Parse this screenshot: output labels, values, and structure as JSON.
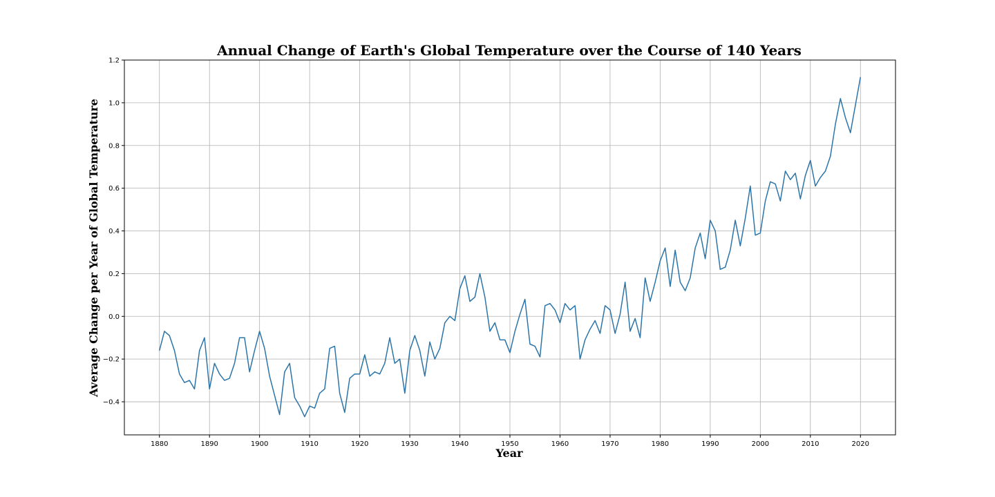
{
  "chart_data": {
    "type": "line",
    "title": "Annual Change of Earth's Global Temperature over the Course of 140 Years",
    "xlabel": "Year",
    "ylabel": "Average Change per Year of Global Temperature",
    "xlim": [
      1873,
      2027
    ],
    "ylim": [
      -0.555,
      1.2
    ],
    "xticks": [
      1880,
      1890,
      1900,
      1910,
      1920,
      1930,
      1940,
      1950,
      1960,
      1970,
      1980,
      1990,
      2000,
      2010,
      2020
    ],
    "xtick_labels": [
      "1880",
      "1890",
      "1900",
      "1910",
      "1920",
      "1930",
      "1940",
      "1950",
      "1960",
      "1970",
      "1980",
      "1990",
      "2000",
      "2010",
      "2020"
    ],
    "yticks": [
      -0.4,
      -0.2,
      0.0,
      0.2,
      0.4,
      0.6,
      0.8,
      1.0,
      1.2
    ],
    "ytick_labels": [
      "−0.4",
      "−0.2",
      "0.0",
      "0.2",
      "0.4",
      "0.6",
      "0.8",
      "1.0",
      "1.2"
    ],
    "grid": true,
    "line_color": "#2b74a8",
    "series": [
      {
        "x": [
          1880,
          1881,
          1882,
          1883,
          1884,
          1885,
          1886,
          1887,
          1888,
          1889,
          1890,
          1891,
          1892,
          1893,
          1894,
          1895,
          1896,
          1897,
          1898,
          1899,
          1900,
          1901,
          1902,
          1903,
          1904,
          1905,
          1906,
          1907,
          1908,
          1909,
          1910,
          1911,
          1912,
          1913,
          1914,
          1915,
          1916,
          1917,
          1918,
          1919,
          1920,
          1921,
          1922,
          1923,
          1924,
          1925,
          1926,
          1927,
          1928,
          1929,
          1930,
          1931,
          1932,
          1933,
          1934,
          1935,
          1936,
          1937,
          1938,
          1939,
          1940,
          1941,
          1942,
          1943,
          1944,
          1945,
          1946,
          1947,
          1948,
          1949,
          1950,
          1951,
          1952,
          1953,
          1954,
          1955,
          1956,
          1957,
          1958,
          1959,
          1960,
          1961,
          1962,
          1963,
          1964,
          1965,
          1966,
          1967,
          1968,
          1969,
          1970,
          1971,
          1972,
          1973,
          1974,
          1975,
          1976,
          1977,
          1978,
          1979,
          1980,
          1981,
          1982,
          1983,
          1984,
          1985,
          1986,
          1987,
          1988,
          1989,
          1990,
          1991,
          1992,
          1993,
          1994,
          1995,
          1996,
          1997,
          1998,
          1999,
          2000,
          2001,
          2002,
          2003,
          2004,
          2005,
          2006,
          2007,
          2008,
          2009,
          2010,
          2011,
          2012,
          2013,
          2014,
          2015,
          2016,
          2017,
          2018,
          2019,
          2020
        ],
        "values": [
          -0.16,
          -0.07,
          -0.09,
          -0.16,
          -0.27,
          -0.31,
          -0.3,
          -0.34,
          -0.16,
          -0.1,
          -0.34,
          -0.22,
          -0.27,
          -0.3,
          -0.29,
          -0.22,
          -0.1,
          -0.1,
          -0.26,
          -0.16,
          -0.07,
          -0.15,
          -0.28,
          -0.37,
          -0.46,
          -0.26,
          -0.22,
          -0.38,
          -0.42,
          -0.47,
          -0.42,
          -0.43,
          -0.36,
          -0.34,
          -0.15,
          -0.14,
          -0.36,
          -0.45,
          -0.29,
          -0.27,
          -0.27,
          -0.18,
          -0.28,
          -0.26,
          -0.27,
          -0.22,
          -0.1,
          -0.22,
          -0.2,
          -0.36,
          -0.16,
          -0.09,
          -0.16,
          -0.28,
          -0.12,
          -0.2,
          -0.15,
          -0.03,
          0.0,
          -0.02,
          0.13,
          0.19,
          0.07,
          0.09,
          0.2,
          0.09,
          -0.07,
          -0.03,
          -0.11,
          -0.11,
          -0.17,
          -0.07,
          0.01,
          0.08,
          -0.13,
          -0.14,
          -0.19,
          0.05,
          0.06,
          0.03,
          -0.03,
          0.06,
          0.03,
          0.05,
          -0.2,
          -0.11,
          -0.06,
          -0.02,
          -0.08,
          0.05,
          0.03,
          -0.08,
          0.01,
          0.16,
          -0.07,
          -0.01,
          -0.1,
          0.18,
          0.07,
          0.16,
          0.26,
          0.32,
          0.14,
          0.31,
          0.16,
          0.12,
          0.18,
          0.32,
          0.39,
          0.27,
          0.45,
          0.4,
          0.22,
          0.23,
          0.31,
          0.45,
          0.33,
          0.46,
          0.61,
          0.38,
          0.39,
          0.54,
          0.63,
          0.62,
          0.54,
          0.68,
          0.64,
          0.67,
          0.55,
          0.66,
          0.73,
          0.61,
          0.65,
          0.68,
          0.75,
          0.9,
          1.02,
          0.93,
          0.86,
          0.99,
          1.12
        ]
      }
    ]
  }
}
